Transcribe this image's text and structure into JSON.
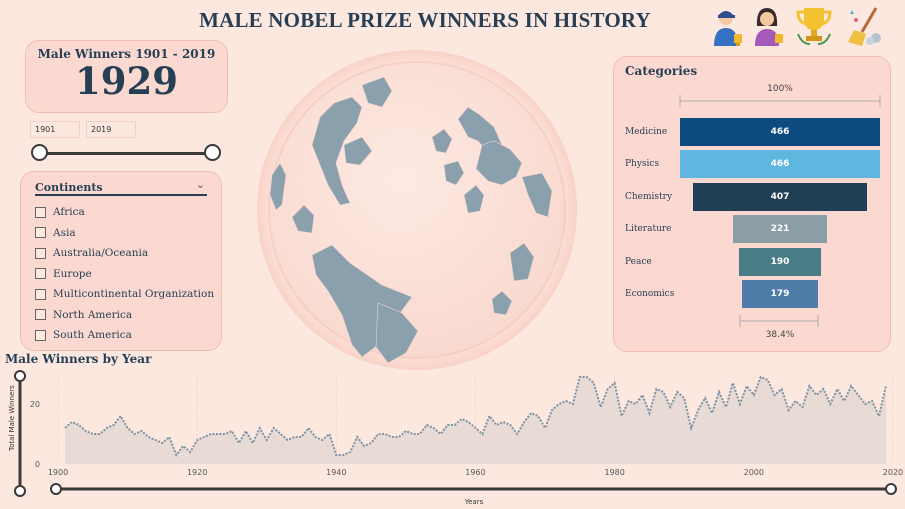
{
  "title": "MALE NOBEL PRIZE WINNERS IN HISTORY",
  "header_icons": [
    "male-laureate-icon",
    "female-laureate-icon",
    "trophy-icon",
    "broom-icon"
  ],
  "kpi": {
    "label": "Male Winners 1901 - 2019",
    "value": "1929"
  },
  "year_slider": {
    "start": "1901",
    "end": "2019"
  },
  "continents": {
    "label": "Continents",
    "items": [
      "Africa",
      "Asia",
      "Australia/Oceania",
      "Europe",
      "Multicontinental Organization",
      "North America",
      "South America"
    ]
  },
  "categories": {
    "title": "Categories",
    "top_pct": "100%",
    "bottom_pct": "38.4%",
    "items": [
      {
        "label": "Medicine",
        "value": 466,
        "display": "466",
        "color": "#0d4a80"
      },
      {
        "label": "Physics",
        "value": 466,
        "display": "466",
        "color": "#5fb7e0"
      },
      {
        "label": "Chemistry",
        "value": 407,
        "display": "407",
        "color": "#213f54"
      },
      {
        "label": "Literature",
        "value": 221,
        "display": "221",
        "color": "#8b9ea6"
      },
      {
        "label": "Peace",
        "value": 190,
        "display": "190",
        "color": "#4a7c85"
      },
      {
        "label": "Economics",
        "value": 179,
        "display": "179",
        "color": "#4f7ca8"
      }
    ]
  },
  "chart_data": {
    "type": "area",
    "title": "Male Winners by Year",
    "xlabel": "Years",
    "ylabel": "Total Male Winners",
    "xlim": [
      1900,
      2019
    ],
    "ylim": [
      0,
      30
    ],
    "x_ticks": [
      "1900",
      "1920",
      "1940",
      "1960",
      "1980",
      "2000",
      "2020"
    ],
    "y_ticks": [
      "0",
      "20"
    ],
    "x": [
      1901,
      1902,
      1903,
      1904,
      1905,
      1906,
      1907,
      1908,
      1909,
      1910,
      1911,
      1912,
      1913,
      1914,
      1915,
      1916,
      1917,
      1918,
      1919,
      1920,
      1921,
      1922,
      1923,
      1924,
      1925,
      1926,
      1927,
      1928,
      1929,
      1930,
      1931,
      1932,
      1933,
      1934,
      1935,
      1936,
      1937,
      1938,
      1939,
      1940,
      1941,
      1942,
      1943,
      1944,
      1945,
      1946,
      1947,
      1948,
      1949,
      1950,
      1951,
      1952,
      1953,
      1954,
      1955,
      1956,
      1957,
      1958,
      1959,
      1960,
      1961,
      1962,
      1963,
      1964,
      1965,
      1966,
      1967,
      1968,
      1969,
      1970,
      1971,
      1972,
      1973,
      1974,
      1975,
      1976,
      1977,
      1978,
      1979,
      1980,
      1981,
      1982,
      1983,
      1984,
      1985,
      1986,
      1987,
      1988,
      1989,
      1990,
      1991,
      1992,
      1993,
      1994,
      1995,
      1996,
      1997,
      1998,
      1999,
      2000,
      2001,
      2002,
      2003,
      2004,
      2005,
      2006,
      2007,
      2008,
      2009,
      2010,
      2011,
      2012,
      2013,
      2014,
      2015,
      2016,
      2017,
      2018,
      2019
    ],
    "values": [
      12,
      14,
      13,
      11,
      10,
      10,
      12,
      13,
      16,
      12,
      10,
      11,
      9,
      8,
      7,
      9,
      3,
      6,
      4,
      8,
      9,
      10,
      10,
      10,
      11,
      7,
      11,
      7,
      12,
      8,
      12,
      10,
      8,
      9,
      9,
      12,
      9,
      8,
      10,
      3,
      3,
      4,
      9,
      6,
      7,
      10,
      10,
      9,
      9,
      11,
      10,
      10,
      13,
      12,
      10,
      13,
      13,
      15,
      14,
      12,
      10,
      16,
      13,
      14,
      13,
      10,
      14,
      17,
      16,
      12,
      18,
      20,
      21,
      20,
      29,
      29,
      27,
      19,
      25,
      27,
      16,
      21,
      20,
      23,
      17,
      25,
      24,
      19,
      24,
      22,
      12,
      18,
      22,
      17,
      24,
      19,
      27,
      20,
      26,
      23,
      29,
      28,
      23,
      25,
      18,
      21,
      19,
      26,
      23,
      25,
      20,
      25,
      21,
      26,
      23,
      20,
      21,
      16,
      26
    ]
  }
}
